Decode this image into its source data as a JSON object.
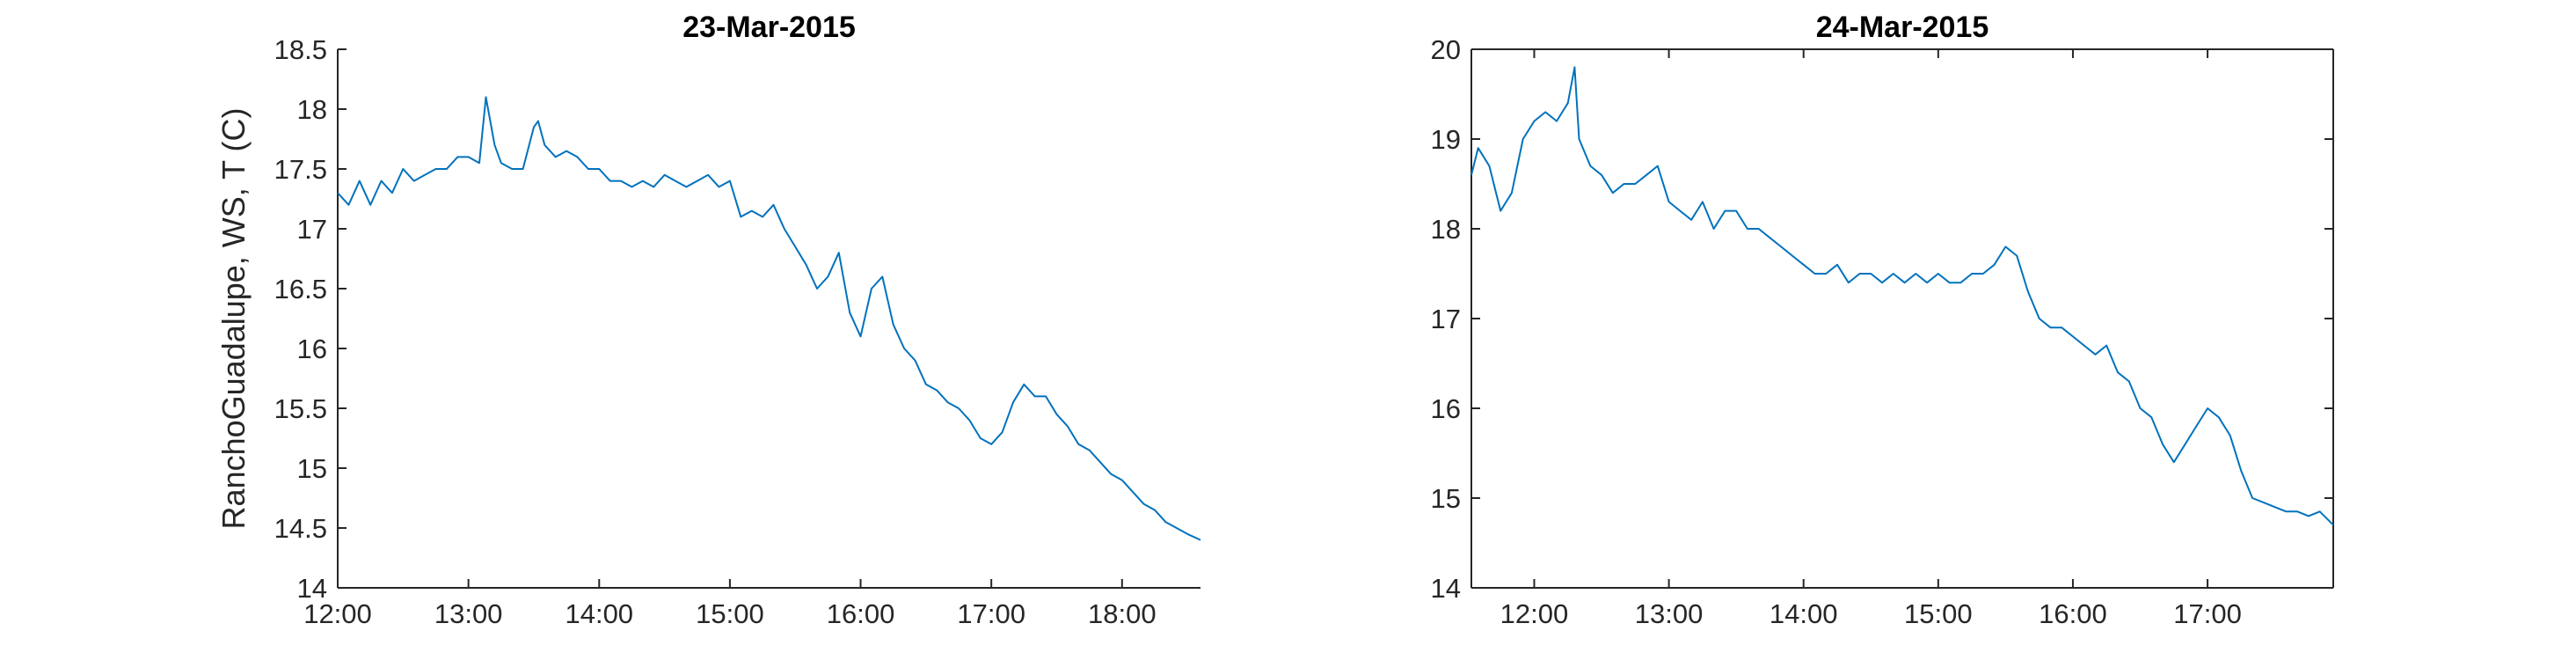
{
  "chart_data": [
    {
      "type": "line",
      "title": "23-Mar-2015",
      "ylabel": "RanchoGuadalupe, WS, T (C)",
      "xlabel": "",
      "x_ticks": [
        "12:00",
        "13:00",
        "14:00",
        "15:00",
        "16:00",
        "17:00",
        "18:00"
      ],
      "y_ticks": [
        "14",
        "14.5",
        "15",
        "15.5",
        "16",
        "16.5",
        "17",
        "17.5",
        "18",
        "18.5"
      ],
      "xlim": [
        "12:00",
        "18:36"
      ],
      "ylim": [
        14,
        18.5
      ],
      "box": false,
      "grid": false,
      "color": "#0072bd",
      "series": [
        {
          "x": [
            "12:00",
            "12:05",
            "12:10",
            "12:15",
            "12:20",
            "12:25",
            "12:30",
            "12:35",
            "12:40",
            "12:45",
            "12:50",
            "12:55",
            "13:00",
            "13:05",
            "13:08",
            "13:12",
            "13:15",
            "13:20",
            "13:25",
            "13:30",
            "13:32",
            "13:35",
            "13:40",
            "13:45",
            "13:50",
            "13:55",
            "14:00",
            "14:05",
            "14:10",
            "14:15",
            "14:20",
            "14:25",
            "14:30",
            "14:35",
            "14:40",
            "14:45",
            "14:50",
            "14:55",
            "15:00",
            "15:05",
            "15:10",
            "15:15",
            "15:20",
            "15:25",
            "15:30",
            "15:35",
            "15:40",
            "15:45",
            "15:50",
            "15:55",
            "16:00",
            "16:05",
            "16:10",
            "16:15",
            "16:20",
            "16:25",
            "16:30",
            "16:35",
            "16:40",
            "16:45",
            "16:50",
            "16:55",
            "17:00",
            "17:05",
            "17:10",
            "17:15",
            "17:20",
            "17:25",
            "17:30",
            "17:35",
            "17:40",
            "17:45",
            "17:50",
            "17:55",
            "18:00",
            "18:05",
            "18:10",
            "18:15",
            "18:20",
            "18:25",
            "18:30",
            "18:36"
          ],
          "y": [
            17.3,
            17.2,
            17.4,
            17.2,
            17.4,
            17.3,
            17.5,
            17.4,
            17.45,
            17.5,
            17.5,
            17.6,
            17.6,
            17.55,
            18.1,
            17.7,
            17.55,
            17.5,
            17.5,
            17.85,
            17.9,
            17.7,
            17.6,
            17.65,
            17.6,
            17.5,
            17.5,
            17.4,
            17.4,
            17.35,
            17.4,
            17.35,
            17.45,
            17.4,
            17.35,
            17.4,
            17.45,
            17.35,
            17.4,
            17.1,
            17.15,
            17.1,
            17.2,
            17.0,
            16.85,
            16.7,
            16.5,
            16.6,
            16.8,
            16.3,
            16.1,
            16.5,
            16.6,
            16.2,
            16.0,
            15.9,
            15.7,
            15.65,
            15.55,
            15.5,
            15.4,
            15.25,
            15.2,
            15.3,
            15.55,
            15.7,
            15.6,
            15.6,
            15.45,
            15.35,
            15.2,
            15.15,
            15.05,
            14.95,
            14.9,
            14.8,
            14.7,
            14.65,
            14.55,
            14.5,
            14.45,
            14.4
          ]
        }
      ]
    },
    {
      "type": "line",
      "title": "24-Mar-2015",
      "ylabel": "",
      "xlabel": "",
      "x_ticks": [
        "12:00",
        "13:00",
        "14:00",
        "15:00",
        "16:00",
        "17:00"
      ],
      "y_ticks": [
        "14",
        "15",
        "16",
        "17",
        "18",
        "19",
        "20"
      ],
      "xlim": [
        "11:32",
        "17:56"
      ],
      "ylim": [
        14,
        20
      ],
      "box": true,
      "grid": false,
      "color": "#0072bd",
      "series": [
        {
          "x": [
            "11:32",
            "11:35",
            "11:40",
            "11:45",
            "11:50",
            "11:55",
            "12:00",
            "12:05",
            "12:10",
            "12:15",
            "12:18",
            "12:20",
            "12:25",
            "12:30",
            "12:35",
            "12:40",
            "12:45",
            "12:50",
            "12:55",
            "13:00",
            "13:05",
            "13:10",
            "13:15",
            "13:20",
            "13:25",
            "13:30",
            "13:35",
            "13:40",
            "13:45",
            "13:50",
            "13:55",
            "14:00",
            "14:05",
            "14:10",
            "14:15",
            "14:20",
            "14:25",
            "14:30",
            "14:35",
            "14:40",
            "14:45",
            "14:50",
            "14:55",
            "15:00",
            "15:05",
            "15:10",
            "15:15",
            "15:20",
            "15:25",
            "15:30",
            "15:35",
            "15:40",
            "15:45",
            "15:50",
            "15:55",
            "16:00",
            "16:05",
            "16:10",
            "16:15",
            "16:20",
            "16:25",
            "16:30",
            "16:35",
            "16:40",
            "16:45",
            "16:50",
            "16:55",
            "17:00",
            "17:05",
            "17:10",
            "17:15",
            "17:20",
            "17:25",
            "17:30",
            "17:35",
            "17:40",
            "17:45",
            "17:50",
            "17:56"
          ],
          "y": [
            18.6,
            18.9,
            18.7,
            18.2,
            18.4,
            19.0,
            19.2,
            19.3,
            19.2,
            19.4,
            19.8,
            19.0,
            18.7,
            18.6,
            18.4,
            18.5,
            18.5,
            18.6,
            18.7,
            18.3,
            18.2,
            18.1,
            18.3,
            18.0,
            18.2,
            18.2,
            18.0,
            18.0,
            17.9,
            17.8,
            17.7,
            17.6,
            17.5,
            17.5,
            17.6,
            17.4,
            17.5,
            17.5,
            17.4,
            17.5,
            17.4,
            17.5,
            17.4,
            17.5,
            17.4,
            17.4,
            17.5,
            17.5,
            17.6,
            17.8,
            17.7,
            17.3,
            17.0,
            16.9,
            16.9,
            16.8,
            16.7,
            16.6,
            16.7,
            16.4,
            16.3,
            16.0,
            15.9,
            15.6,
            15.4,
            15.6,
            15.8,
            16.0,
            15.9,
            15.7,
            15.3,
            15.0,
            14.95,
            14.9,
            14.85,
            14.85,
            14.8,
            14.85,
            14.7
          ]
        }
      ]
    }
  ]
}
